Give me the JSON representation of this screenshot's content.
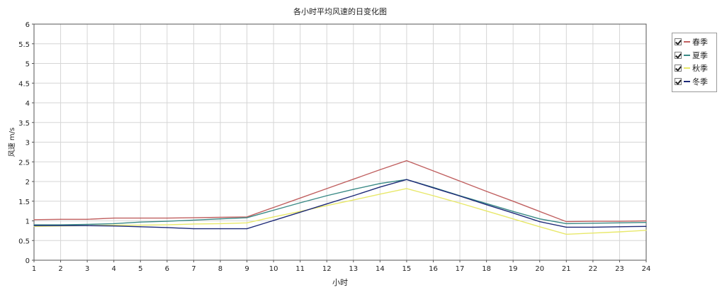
{
  "chart_data": {
    "type": "line",
    "title": "各小时平均风速的日变化图",
    "xlabel": "小时",
    "ylabel": "风速 m/s",
    "x": [
      1,
      2,
      3,
      4,
      5,
      6,
      7,
      8,
      9,
      10,
      11,
      12,
      13,
      14,
      15,
      16,
      17,
      18,
      19,
      20,
      21,
      22,
      23,
      24
    ],
    "xlim": [
      1,
      24
    ],
    "ylim": [
      0,
      6
    ],
    "yticks": [
      "0",
      "0.5",
      "1",
      "1.5",
      "2",
      "2.5",
      "3",
      "3.5",
      "4",
      "4.5",
      "5",
      "5.5",
      "6"
    ],
    "xticks": [
      "1",
      "2",
      "3",
      "4",
      "5",
      "6",
      "7",
      "8",
      "9",
      "10",
      "11",
      "12",
      "13",
      "14",
      "15",
      "16",
      "17",
      "18",
      "19",
      "20",
      "21",
      "22",
      "23",
      "24"
    ],
    "grid": true,
    "legend_position": "right",
    "series": [
      {
        "name": "春季",
        "color": "#c06060",
        "values": [
          1.03,
          1.04,
          1.04,
          1.07,
          1.07,
          1.07,
          1.08,
          1.09,
          1.1,
          1.34,
          1.58,
          1.82,
          2.06,
          2.3,
          2.53,
          2.27,
          2.01,
          1.75,
          1.5,
          1.24,
          0.98,
          0.99,
          0.99,
          1.0
        ]
      },
      {
        "name": "夏季",
        "color": "#3a8a86",
        "values": [
          0.9,
          0.9,
          0.91,
          0.93,
          0.97,
          0.99,
          1.02,
          1.05,
          1.08,
          1.27,
          1.46,
          1.64,
          1.8,
          1.95,
          2.05,
          1.85,
          1.64,
          1.44,
          1.24,
          1.05,
          0.93,
          0.94,
          0.95,
          0.96
        ]
      },
      {
        "name": "秋季",
        "color": "#e8e86a",
        "values": [
          0.86,
          0.87,
          0.88,
          0.89,
          0.89,
          0.9,
          0.92,
          0.93,
          0.95,
          1.1,
          1.24,
          1.39,
          1.53,
          1.68,
          1.82,
          1.64,
          1.45,
          1.25,
          1.05,
          0.85,
          0.66,
          0.69,
          0.72,
          0.76
        ]
      },
      {
        "name": "冬季",
        "color": "#1e2a78",
        "values": [
          0.88,
          0.88,
          0.88,
          0.87,
          0.85,
          0.83,
          0.8,
          0.8,
          0.8,
          1.01,
          1.22,
          1.43,
          1.64,
          1.86,
          2.05,
          1.84,
          1.63,
          1.41,
          1.2,
          0.98,
          0.84,
          0.84,
          0.85,
          0.86
        ]
      }
    ]
  }
}
